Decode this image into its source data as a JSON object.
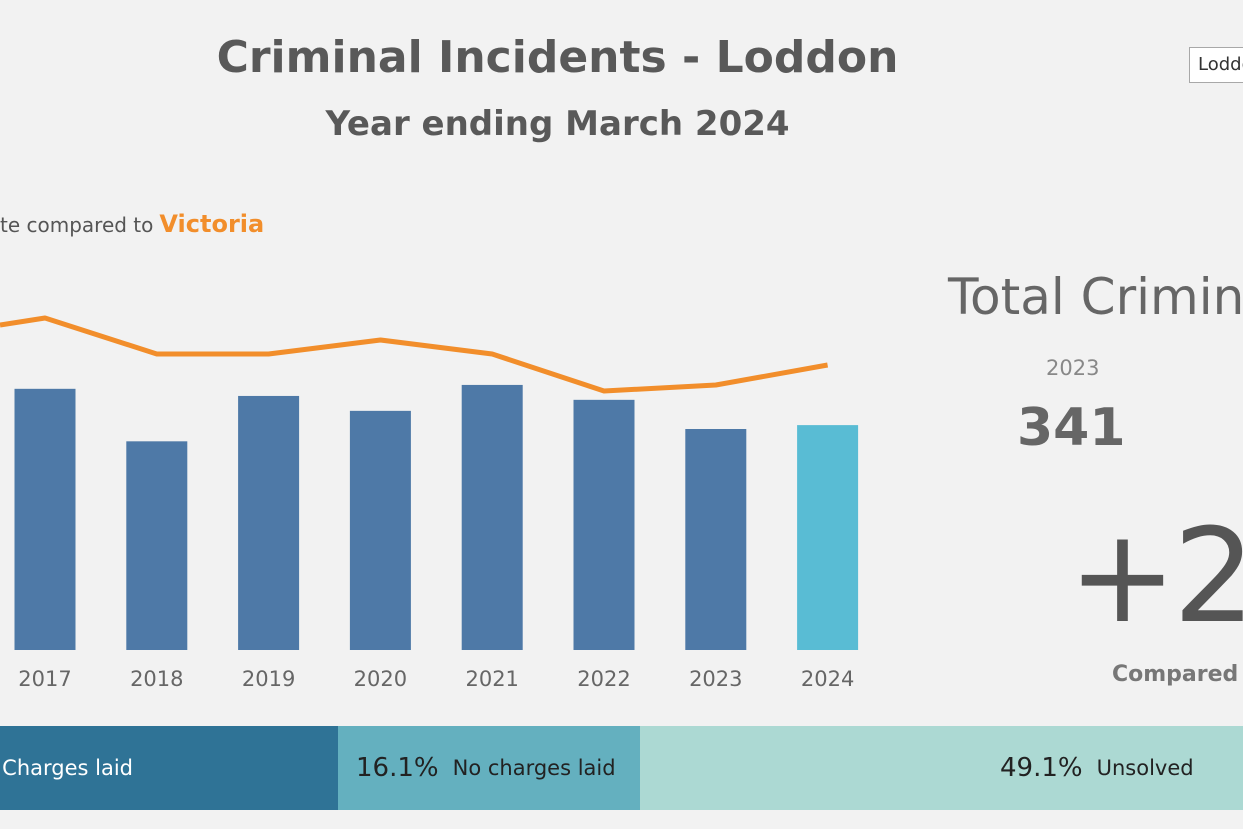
{
  "header": {
    "title": "Criminal Incidents - Loddon",
    "subtitle": "Year ending March 2024",
    "region_select_value": "Loddon"
  },
  "chart_heading": {
    "prefix": "te compared to",
    "highlight": "Victoria"
  },
  "chart_data": {
    "type": "bar",
    "categories": [
      "2017",
      "2018",
      "2019",
      "2020",
      "2021",
      "2022",
      "2023",
      "2024"
    ],
    "values": [
      403,
      322,
      392,
      369,
      409,
      386,
      341,
      347
    ],
    "bar_color": "#4e79a7",
    "highlight_color": "#59bcd4",
    "highlight_category": "2024",
    "line_series": {
      "color": "#f28e2b",
      "relative_values": [
        142,
        106,
        106,
        120,
        106,
        69,
        75,
        95
      ]
    },
    "grid": false,
    "title": "",
    "xlabel": "",
    "ylabel": ""
  },
  "kpi": {
    "title": "Total Crimin",
    "prev_year": "2023",
    "prev_value": "341",
    "change": "+2.",
    "compared": "Compared t"
  },
  "outcomes": [
    {
      "pct": "",
      "label": "Charges laid",
      "share": 34.8,
      "color": "#2f7396",
      "text_color": "#ffffff"
    },
    {
      "pct": "16.1%",
      "label": "No charges laid",
      "share": 16.1,
      "color": "#64b0bf",
      "text_color": "#222222"
    },
    {
      "pct": "49.1%",
      "label": "Unsolved",
      "share": 49.1,
      "color": "#acd9d3",
      "text_color": "#222222"
    }
  ]
}
